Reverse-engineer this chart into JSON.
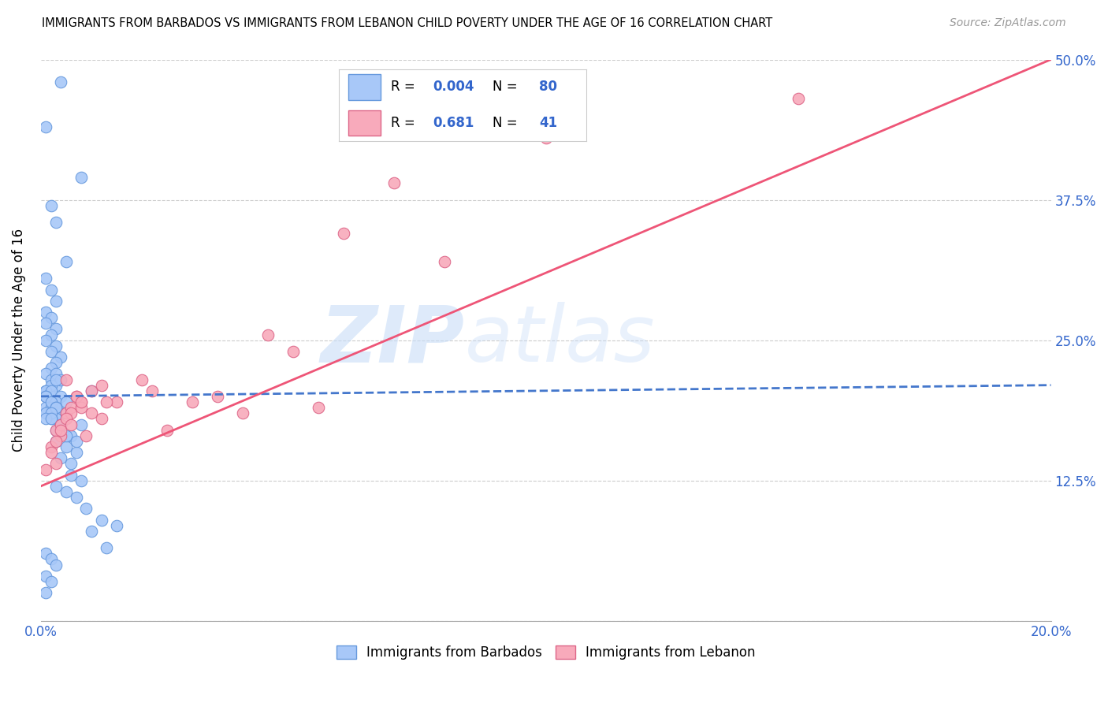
{
  "title": "IMMIGRANTS FROM BARBADOS VS IMMIGRANTS FROM LEBANON CHILD POVERTY UNDER THE AGE OF 16 CORRELATION CHART",
  "source": "Source: ZipAtlas.com",
  "ylabel": "Child Poverty Under the Age of 16",
  "xlim": [
    0.0,
    0.2
  ],
  "ylim": [
    0.0,
    0.5
  ],
  "xtick_vals": [
    0.0,
    0.05,
    0.1,
    0.15,
    0.2
  ],
  "xticklabels": [
    "0.0%",
    "",
    "",
    "",
    "20.0%"
  ],
  "ytick_vals": [
    0.0,
    0.125,
    0.25,
    0.375,
    0.5
  ],
  "yticklabels_right": [
    "",
    "12.5%",
    "25.0%",
    "37.5%",
    "50.0%"
  ],
  "legend_label1": "Immigrants from Barbados",
  "legend_label2": "Immigrants from Lebanon",
  "color_barbados_fill": "#a8c8f8",
  "color_barbados_edge": "#6699dd",
  "color_lebanon_fill": "#f8aabb",
  "color_lebanon_edge": "#dd6688",
  "color_barbados_line": "#4477cc",
  "color_lebanon_line": "#ee5577",
  "watermark_zip": "ZIP",
  "watermark_atlas": "atlas",
  "barbados_x": [
    0.004,
    0.001,
    0.008,
    0.002,
    0.003,
    0.005,
    0.001,
    0.002,
    0.003,
    0.001,
    0.002,
    0.001,
    0.003,
    0.002,
    0.001,
    0.003,
    0.002,
    0.004,
    0.003,
    0.002,
    0.001,
    0.002,
    0.003,
    0.001,
    0.002,
    0.003,
    0.004,
    0.002,
    0.001,
    0.003,
    0.002,
    0.001,
    0.003,
    0.004,
    0.002,
    0.001,
    0.003,
    0.002,
    0.004,
    0.003,
    0.001,
    0.002,
    0.003,
    0.001,
    0.002,
    0.005,
    0.003,
    0.002,
    0.001,
    0.004,
    0.003,
    0.005,
    0.002,
    0.004,
    0.006,
    0.003,
    0.005,
    0.007,
    0.004,
    0.006,
    0.008,
    0.005,
    0.007,
    0.01,
    0.006,
    0.008,
    0.003,
    0.005,
    0.007,
    0.009,
    0.012,
    0.015,
    0.01,
    0.013,
    0.001,
    0.002,
    0.003,
    0.001,
    0.002,
    0.001
  ],
  "barbados_y": [
    0.48,
    0.44,
    0.395,
    0.37,
    0.355,
    0.32,
    0.305,
    0.295,
    0.285,
    0.275,
    0.27,
    0.265,
    0.26,
    0.255,
    0.25,
    0.245,
    0.24,
    0.235,
    0.23,
    0.225,
    0.22,
    0.215,
    0.21,
    0.205,
    0.2,
    0.22,
    0.215,
    0.21,
    0.205,
    0.215,
    0.205,
    0.2,
    0.195,
    0.2,
    0.195,
    0.19,
    0.195,
    0.19,
    0.185,
    0.18,
    0.2,
    0.195,
    0.19,
    0.185,
    0.18,
    0.195,
    0.19,
    0.185,
    0.18,
    0.175,
    0.17,
    0.185,
    0.18,
    0.175,
    0.165,
    0.16,
    0.155,
    0.15,
    0.145,
    0.14,
    0.175,
    0.165,
    0.16,
    0.205,
    0.13,
    0.125,
    0.12,
    0.115,
    0.11,
    0.1,
    0.09,
    0.085,
    0.08,
    0.065,
    0.06,
    0.055,
    0.05,
    0.04,
    0.035,
    0.025
  ],
  "lebanon_x": [
    0.001,
    0.002,
    0.003,
    0.004,
    0.002,
    0.003,
    0.005,
    0.004,
    0.003,
    0.006,
    0.007,
    0.005,
    0.004,
    0.006,
    0.008,
    0.005,
    0.007,
    0.009,
    0.006,
    0.008,
    0.01,
    0.012,
    0.008,
    0.01,
    0.015,
    0.013,
    0.012,
    0.02,
    0.025,
    0.022,
    0.03,
    0.035,
    0.04,
    0.045,
    0.05,
    0.055,
    0.06,
    0.07,
    0.08,
    0.1,
    0.15
  ],
  "lebanon_y": [
    0.135,
    0.155,
    0.14,
    0.165,
    0.15,
    0.17,
    0.185,
    0.175,
    0.16,
    0.19,
    0.2,
    0.215,
    0.17,
    0.185,
    0.195,
    0.18,
    0.2,
    0.165,
    0.175,
    0.19,
    0.185,
    0.21,
    0.195,
    0.205,
    0.195,
    0.195,
    0.18,
    0.215,
    0.17,
    0.205,
    0.195,
    0.2,
    0.185,
    0.255,
    0.24,
    0.19,
    0.345,
    0.39,
    0.32,
    0.43,
    0.465
  ],
  "barbados_line_x": [
    0.0,
    0.2
  ],
  "barbados_line_y": [
    0.2,
    0.21
  ],
  "lebanon_line_x": [
    0.0,
    0.2
  ],
  "lebanon_line_y": [
    0.12,
    0.5
  ]
}
